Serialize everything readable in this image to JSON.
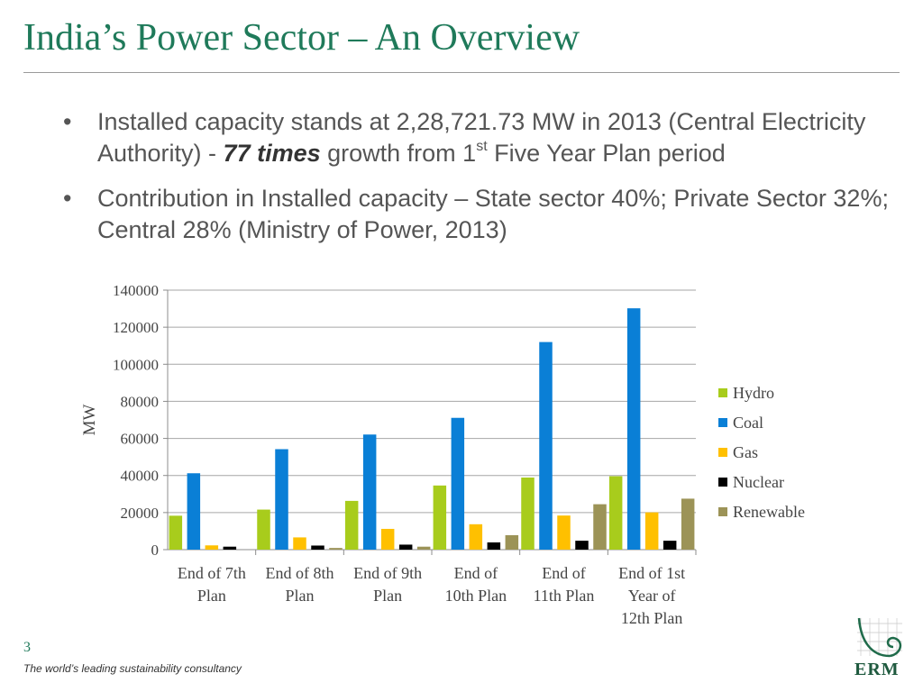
{
  "title": "India’s Power Sector – An Overview",
  "bullets": {
    "b1_part1": "Installed capacity stands at 2,28,721.73 MW in 2013 (Central Electricity Authority) - ",
    "b1_em": "77 times",
    "b1_part2": " growth from 1",
    "b1_sup": "st",
    "b1_part3": " Five Year Plan period",
    "b2": "Contribution in Installed capacity – State sector 40%; Private Sector 32%; Central 28% (Ministry of Power, 2013)",
    "marker": "•"
  },
  "footer": {
    "page_number": "3",
    "tagline": "The world’s leading sustainability consultancy",
    "logo_text": "ERM"
  },
  "chart_data": {
    "type": "bar",
    "ylabel": "MW",
    "xlabel": "",
    "ylim": [
      0,
      140000
    ],
    "yticks": [
      0,
      20000,
      40000,
      60000,
      80000,
      100000,
      120000,
      140000
    ],
    "grid": true,
    "legend_position": "right",
    "categories": [
      [
        "End of 7th",
        "Plan"
      ],
      [
        "End of 8th",
        "Plan"
      ],
      [
        "End of 9th",
        "Plan"
      ],
      [
        "End of",
        "10th Plan"
      ],
      [
        "End of",
        "11th Plan"
      ],
      [
        "End of 1st",
        "Year of",
        "12th Plan"
      ]
    ],
    "series": [
      {
        "name": "Hydro",
        "color": "#a8cc1c",
        "values": [
          18300,
          21600,
          26300,
          34600,
          38900,
          39600
        ]
      },
      {
        "name": "Coal",
        "color": "#0a7fd6",
        "values": [
          41200,
          54200,
          62100,
          71100,
          112000,
          130200
        ]
      },
      {
        "name": "Gas",
        "color": "#ffc000",
        "values": [
          2300,
          6600,
          11200,
          13700,
          18400,
          20100
        ]
      },
      {
        "name": "Nuclear",
        "color": "#000000",
        "values": [
          1600,
          2200,
          2700,
          3900,
          4800,
          4800
        ]
      },
      {
        "name": "Renewable",
        "color": "#9c9357",
        "values": [
          0,
          900,
          1600,
          7800,
          24500,
          27500
        ]
      }
    ]
  }
}
